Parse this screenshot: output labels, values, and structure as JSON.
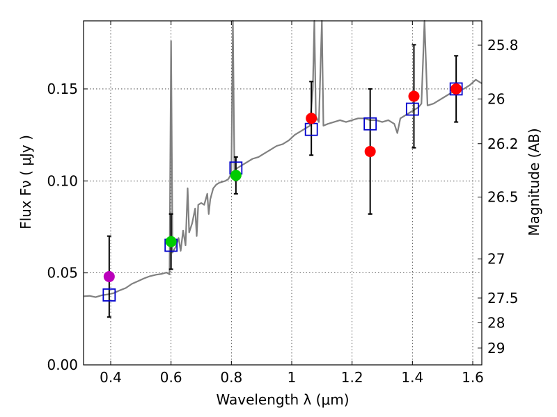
{
  "chart_data": {
    "type": "scatter",
    "xlabel": "Wavelength  λ (μm)",
    "ylabel_left": "Flux  Fν  ( μJy )",
    "ylabel_right": "Magnitude (AB)",
    "xlim": [
      0.31,
      1.63
    ],
    "ylim": [
      0.0,
      0.187
    ],
    "grid": true,
    "x_ticks": [
      {
        "value": 0.4,
        "label": "0.4"
      },
      {
        "value": 0.6,
        "label": "0.6"
      },
      {
        "value": 0.8,
        "label": "0.8"
      },
      {
        "value": 1.0,
        "label": "1"
      },
      {
        "value": 1.2,
        "label": "1.2"
      },
      {
        "value": 1.4,
        "label": "1.4"
      },
      {
        "value": 1.6,
        "label": "1.6"
      }
    ],
    "y_ticks": [
      {
        "value": 0.0,
        "label": "0.00"
      },
      {
        "value": 0.05,
        "label": "0.05"
      },
      {
        "value": 0.1,
        "label": "0.10"
      },
      {
        "value": 0.15,
        "label": "0.15"
      }
    ],
    "mag_ticks": [
      {
        "value": 25.8,
        "label": "25.8"
      },
      {
        "value": 26.0,
        "label": "26"
      },
      {
        "value": 26.2,
        "label": "26.2"
      },
      {
        "value": 26.5,
        "label": "26.5"
      },
      {
        "value": 27.0,
        "label": "27"
      },
      {
        "value": 27.5,
        "label": "27.5"
      },
      {
        "value": 28.0,
        "label": "28"
      },
      {
        "value": 29.0,
        "label": "29"
      }
    ],
    "spectrum": {
      "color": "#808080",
      "points": [
        [
          0.31,
          0.0373
        ],
        [
          0.33,
          0.0375
        ],
        [
          0.35,
          0.0368
        ],
        [
          0.37,
          0.0378
        ],
        [
          0.39,
          0.0383
        ],
        [
          0.41,
          0.039
        ],
        [
          0.43,
          0.0405
        ],
        [
          0.45,
          0.0418
        ],
        [
          0.47,
          0.044
        ],
        [
          0.49,
          0.0455
        ],
        [
          0.51,
          0.047
        ],
        [
          0.53,
          0.0482
        ],
        [
          0.55,
          0.049
        ],
        [
          0.57,
          0.0495
        ],
        [
          0.585,
          0.0502
        ],
        [
          0.595,
          0.0492
        ],
        [
          0.6,
          0.176
        ],
        [
          0.605,
          0.061
        ],
        [
          0.615,
          0.064
        ],
        [
          0.625,
          0.069
        ],
        [
          0.632,
          0.062
        ],
        [
          0.64,
          0.073
        ],
        [
          0.648,
          0.065
        ],
        [
          0.655,
          0.096
        ],
        [
          0.66,
          0.072
        ],
        [
          0.67,
          0.077
        ],
        [
          0.68,
          0.085
        ],
        [
          0.685,
          0.07
        ],
        [
          0.69,
          0.087
        ],
        [
          0.7,
          0.088
        ],
        [
          0.71,
          0.087
        ],
        [
          0.72,
          0.093
        ],
        [
          0.725,
          0.082
        ],
        [
          0.73,
          0.09
        ],
        [
          0.74,
          0.096
        ],
        [
          0.75,
          0.098
        ],
        [
          0.76,
          0.099
        ],
        [
          0.78,
          0.1
        ],
        [
          0.79,
          0.101
        ],
        [
          0.8,
          0.104
        ],
        [
          0.805,
          0.19
        ],
        [
          0.81,
          0.106
        ],
        [
          0.83,
          0.108
        ],
        [
          0.85,
          0.11
        ],
        [
          0.87,
          0.112
        ],
        [
          0.89,
          0.113
        ],
        [
          0.91,
          0.115
        ],
        [
          0.93,
          0.117
        ],
        [
          0.95,
          0.119
        ],
        [
          0.97,
          0.12
        ],
        [
          0.99,
          0.122
        ],
        [
          1.01,
          0.125
        ],
        [
          1.03,
          0.127
        ],
        [
          1.05,
          0.129
        ],
        [
          1.06,
          0.13
        ],
        [
          1.07,
          0.15
        ],
        [
          1.075,
          0.19
        ],
        [
          1.08,
          0.135
        ],
        [
          1.09,
          0.132
        ],
        [
          1.1,
          0.19
        ],
        [
          1.105,
          0.13
        ],
        [
          1.12,
          0.131
        ],
        [
          1.14,
          0.132
        ],
        [
          1.16,
          0.133
        ],
        [
          1.18,
          0.132
        ],
        [
          1.2,
          0.133
        ],
        [
          1.22,
          0.134
        ],
        [
          1.24,
          0.134
        ],
        [
          1.26,
          0.133
        ],
        [
          1.28,
          0.133
        ],
        [
          1.3,
          0.132
        ],
        [
          1.32,
          0.133
        ],
        [
          1.34,
          0.131
        ],
        [
          1.35,
          0.126
        ],
        [
          1.36,
          0.134
        ],
        [
          1.38,
          0.136
        ],
        [
          1.4,
          0.138
        ],
        [
          1.42,
          0.14
        ],
        [
          1.43,
          0.142
        ],
        [
          1.44,
          0.19
        ],
        [
          1.45,
          0.141
        ],
        [
          1.47,
          0.142
        ],
        [
          1.49,
          0.144
        ],
        [
          1.51,
          0.146
        ],
        [
          1.53,
          0.148
        ],
        [
          1.55,
          0.149
        ],
        [
          1.57,
          0.15
        ],
        [
          1.59,
          0.152
        ],
        [
          1.61,
          0.155
        ],
        [
          1.63,
          0.153
        ]
      ]
    },
    "model_points": {
      "color": "#0000cc",
      "points": [
        {
          "x": 0.395,
          "y": 0.038
        },
        {
          "x": 0.6,
          "y": 0.065
        },
        {
          "x": 0.815,
          "y": 0.107
        },
        {
          "x": 1.065,
          "y": 0.128
        },
        {
          "x": 1.26,
          "y": 0.131
        },
        {
          "x": 1.4,
          "y": 0.139
        },
        {
          "x": 1.545,
          "y": 0.15
        }
      ]
    },
    "observed_points": [
      {
        "x": 0.395,
        "y": 0.048,
        "yerr": 0.022,
        "color": "#bb00bb"
      },
      {
        "x": 0.6,
        "y": 0.067,
        "yerr": 0.015,
        "color": "#00cc00"
      },
      {
        "x": 0.815,
        "y": 0.103,
        "yerr": 0.01,
        "color": "#00cc00"
      },
      {
        "x": 1.065,
        "y": 0.134,
        "yerr": 0.02,
        "color": "#ff0000"
      },
      {
        "x": 1.26,
        "y": 0.116,
        "yerr": 0.034,
        "color": "#ff0000"
      },
      {
        "x": 1.405,
        "y": 0.146,
        "yerr": 0.028,
        "color": "#ff0000"
      },
      {
        "x": 1.545,
        "y": 0.15,
        "yerr": 0.018,
        "color": "#ff0000"
      }
    ]
  }
}
